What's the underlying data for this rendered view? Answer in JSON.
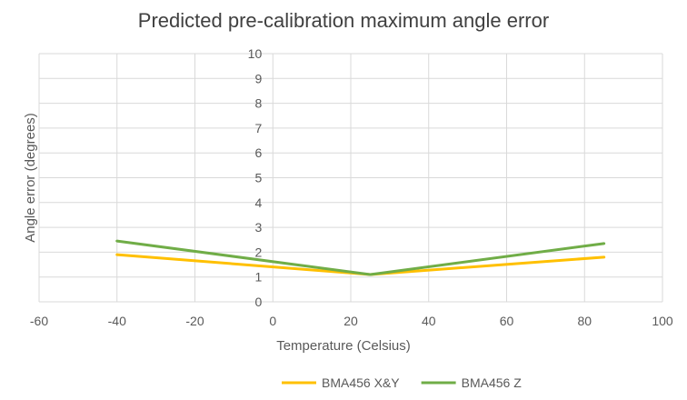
{
  "chart_data": {
    "type": "line",
    "title": "Predicted pre-calibration maximum angle error",
    "xlabel": "Temperature  (Celsius)",
    "ylabel": "Angle error  (degrees)",
    "xlim": [
      -60,
      100
    ],
    "ylim": [
      0,
      10
    ],
    "x_ticks": [
      -60,
      -40,
      -20,
      0,
      20,
      40,
      60,
      80,
      100
    ],
    "y_ticks": [
      0,
      1,
      2,
      3,
      4,
      5,
      6,
      7,
      8,
      9,
      10
    ],
    "grid": true,
    "legend_position": "bottom",
    "series": [
      {
        "name": "BMA456 X&Y",
        "color": "#FFC000",
        "x": [
          -40,
          25,
          85
        ],
        "y": [
          1.9,
          1.1,
          1.8
        ]
      },
      {
        "name": "BMA456 Z",
        "color": "#70AD47",
        "x": [
          -40,
          25,
          85
        ],
        "y": [
          2.45,
          1.1,
          2.35
        ]
      }
    ]
  }
}
